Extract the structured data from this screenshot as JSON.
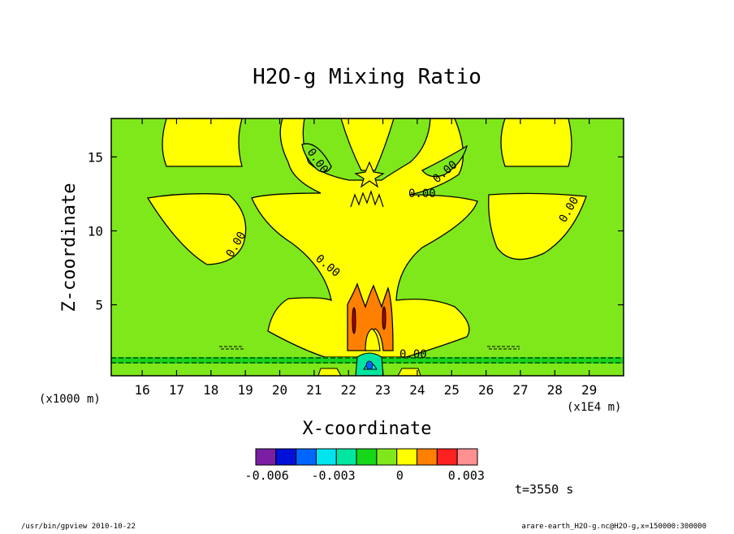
{
  "chart_data": {
    "type": "heatmap",
    "title": "H2O-g Mixing Ratio",
    "xlabel": "X-coordinate",
    "ylabel": "Z-coordinate",
    "x_ticks": [
      16,
      17,
      18,
      19,
      20,
      21,
      22,
      23,
      24,
      25,
      26,
      27,
      28,
      29
    ],
    "y_ticks": [
      5,
      10,
      15
    ],
    "xlim": [
      15.1,
      30.0
    ],
    "ylim": [
      0.2,
      17.6
    ],
    "y_unit": "(x1000 m)",
    "x_unit": "(x1E4 m)",
    "contour_labels": [
      "0.00",
      "0.00",
      "0.00",
      "0.00",
      "0.00",
      "0.00",
      "0.00"
    ],
    "colorbar": {
      "colors": [
        "#7a1fa2",
        "#0010d8",
        "#0066ff",
        "#00e4f0",
        "#00e6a0",
        "#16d61a",
        "#7fe81a",
        "#ffff00",
        "#ff8000",
        "#ff2020",
        "#ff9090"
      ],
      "tick_labels": [
        "-0.006",
        "-0.003",
        "0",
        "0.003"
      ],
      "tick_values": [
        -0.006,
        -0.003,
        0,
        0.003
      ],
      "range": [
        -0.0065,
        0.0035
      ]
    },
    "time_label": "t=3550 s"
  },
  "footer": {
    "left": "/usr/bin/gpview   2010-10-22",
    "right": "arare-earth_H2O-g.nc@H2O-g,x=150000:300000"
  }
}
